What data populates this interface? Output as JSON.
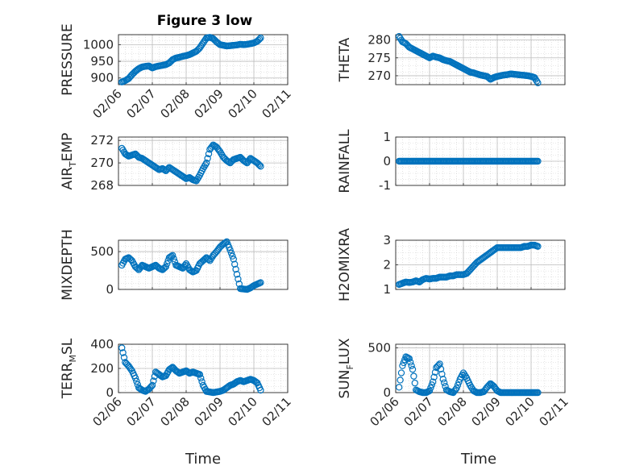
{
  "figure": {
    "title": "Figure 3 low",
    "marker_color": "#0072BD",
    "background": "#ffffff"
  },
  "chart_data": [
    {
      "type": "scatter",
      "ylabel": {
        "main": "PRESSURE",
        "sub": "",
        "after": ""
      },
      "ylim": [
        880,
        1030
      ],
      "yticks": [
        "900",
        "950",
        "1000"
      ],
      "ytick_values": [
        900,
        950,
        1000
      ],
      "xlim": [
        0,
        5
      ],
      "xticks": [
        "02/06",
        "02/07",
        "02/08",
        "02/09",
        "02/10",
        "02/11"
      ],
      "x": [
        0.1,
        0.2,
        0.3,
        0.4,
        0.5,
        0.6,
        0.7,
        0.8,
        0.9,
        1.0,
        1.1,
        1.2,
        1.3,
        1.4,
        1.5,
        1.6,
        1.7,
        1.8,
        1.9,
        2.0,
        2.1,
        2.2,
        2.3,
        2.4,
        2.5,
        2.6,
        2.7,
        2.8,
        2.9,
        3.0,
        3.1,
        3.2,
        3.3,
        3.4,
        3.5,
        3.6,
        3.7,
        3.8,
        3.9,
        4.0,
        4.1,
        4.2
      ],
      "y": [
        888,
        892,
        898,
        910,
        920,
        928,
        933,
        935,
        936,
        930,
        934,
        936,
        938,
        940,
        945,
        955,
        960,
        962,
        965,
        967,
        970,
        975,
        980,
        990,
        1005,
        1020,
        1022,
        1018,
        1008,
        1000,
        998,
        996,
        997,
        998,
        999,
        1001,
        1000,
        1001,
        1003,
        1005,
        1010,
        1020
      ]
    },
    {
      "type": "scatter",
      "ylabel": {
        "main": "THETA",
        "sub": "",
        "after": ""
      },
      "ylim": [
        267.5,
        281.5
      ],
      "yticks": [
        "270",
        "275",
        "280"
      ],
      "ytick_values": [
        270,
        275,
        280
      ],
      "xlim": [
        0,
        5
      ],
      "xticks": [],
      "x": [
        0.1,
        0.2,
        0.3,
        0.4,
        0.5,
        0.6,
        0.7,
        0.8,
        0.9,
        1.0,
        1.1,
        1.2,
        1.3,
        1.4,
        1.5,
        1.6,
        1.7,
        1.8,
        1.9,
        2.0,
        2.1,
        2.2,
        2.3,
        2.4,
        2.5,
        2.6,
        2.7,
        2.8,
        2.9,
        3.0,
        3.1,
        3.2,
        3.3,
        3.4,
        3.5,
        3.6,
        3.7,
        3.8,
        3.9,
        4.0,
        4.1,
        4.2
      ],
      "y": [
        281,
        279.5,
        279,
        278,
        277.5,
        277,
        276.5,
        276,
        275.5,
        275,
        275.5,
        275.2,
        275,
        274.5,
        274.2,
        274,
        273.5,
        273,
        272.5,
        272,
        271.5,
        271,
        270.8,
        270.5,
        270.2,
        270,
        269.8,
        269,
        269.5,
        269.8,
        270,
        270.2,
        270.3,
        270.5,
        270.4,
        270.3,
        270.2,
        270.1,
        270,
        269.8,
        269.5,
        268
      ]
    },
    {
      "type": "scatter",
      "ylabel": {
        "main": "AIR",
        "sub": "T",
        "after": "EMP"
      },
      "ylim": [
        268,
        272.3
      ],
      "yticks": [
        "268",
        "270",
        "272"
      ],
      "ytick_values": [
        268,
        270,
        272
      ],
      "xlim": [
        0,
        5
      ],
      "xticks": [],
      "x": [
        0.1,
        0.2,
        0.3,
        0.4,
        0.5,
        0.6,
        0.7,
        0.8,
        0.9,
        1.0,
        1.1,
        1.2,
        1.3,
        1.4,
        1.5,
        1.6,
        1.7,
        1.8,
        1.9,
        2.0,
        2.1,
        2.2,
        2.3,
        2.4,
        2.5,
        2.6,
        2.7,
        2.8,
        2.9,
        3.0,
        3.1,
        3.2,
        3.3,
        3.4,
        3.5,
        3.6,
        3.7,
        3.8,
        3.9,
        4.0,
        4.1,
        4.2
      ],
      "y": [
        271.3,
        270.8,
        270.6,
        270.7,
        270.8,
        270.5,
        270.4,
        270.2,
        270.0,
        269.8,
        269.6,
        269.4,
        269.5,
        269.3,
        269.6,
        269.4,
        269.2,
        269.0,
        268.8,
        268.6,
        268.7,
        268.5,
        268.4,
        268.9,
        269.5,
        270.0,
        271.2,
        271.6,
        271.4,
        271.0,
        270.5,
        270.2,
        270.0,
        270.3,
        270.4,
        270.5,
        270.2,
        270.0,
        270.4,
        270.2,
        270.0,
        269.7
      ]
    },
    {
      "type": "scatter",
      "ylabel": {
        "main": "RAINFALL",
        "sub": "",
        "after": ""
      },
      "ylim": [
        -1,
        1
      ],
      "yticks": [
        "-1",
        "0",
        "1"
      ],
      "ytick_values": [
        -1,
        0,
        1
      ],
      "xlim": [
        0,
        5
      ],
      "xticks": [],
      "x": [
        0.1,
        0.2,
        0.3,
        0.4,
        0.5,
        0.6,
        0.7,
        0.8,
        0.9,
        1.0,
        1.1,
        1.2,
        1.3,
        1.4,
        1.5,
        1.6,
        1.7,
        1.8,
        1.9,
        2.0,
        2.1,
        2.2,
        2.3,
        2.4,
        2.5,
        2.6,
        2.7,
        2.8,
        2.9,
        3.0,
        3.1,
        3.2,
        3.3,
        3.4,
        3.5,
        3.6,
        3.7,
        3.8,
        3.9,
        4.0,
        4.1,
        4.2
      ],
      "y": [
        0,
        0,
        0,
        0,
        0,
        0,
        0,
        0,
        0,
        0,
        0,
        0,
        0,
        0,
        0,
        0,
        0,
        0,
        0,
        0,
        0,
        0,
        0,
        0,
        0,
        0,
        0,
        0,
        0,
        0,
        0,
        0,
        0,
        0,
        0,
        0,
        0,
        0,
        0,
        0,
        0,
        0
      ]
    },
    {
      "type": "scatter",
      "ylabel": {
        "main": "MIXDEPTH",
        "sub": "",
        "after": ""
      },
      "ylim": [
        0,
        650
      ],
      "yticks": [
        "0",
        "500"
      ],
      "ytick_values": [
        0,
        500
      ],
      "xlim": [
        0,
        5
      ],
      "xticks": [],
      "x": [
        0.1,
        0.2,
        0.3,
        0.4,
        0.5,
        0.6,
        0.7,
        0.8,
        0.9,
        1.0,
        1.1,
        1.2,
        1.3,
        1.4,
        1.5,
        1.6,
        1.7,
        1.8,
        1.9,
        2.0,
        2.1,
        2.2,
        2.3,
        2.4,
        2.5,
        2.6,
        2.7,
        2.8,
        2.9,
        3.0,
        3.1,
        3.2,
        3.3,
        3.4,
        3.5,
        3.6,
        3.7,
        3.8,
        3.9,
        4.0,
        4.1,
        4.2
      ],
      "y": [
        320,
        400,
        420,
        380,
        300,
        260,
        320,
        300,
        280,
        300,
        320,
        280,
        260,
        300,
        420,
        450,
        320,
        300,
        280,
        340,
        260,
        230,
        250,
        340,
        380,
        420,
        380,
        450,
        500,
        560,
        600,
        630,
        520,
        400,
        200,
        10,
        5,
        0,
        20,
        50,
        70,
        90
      ]
    },
    {
      "type": "scatter",
      "ylabel": {
        "main": "H2OMIXRA",
        "sub": "",
        "after": ""
      },
      "ylim": [
        1,
        3
      ],
      "yticks": [
        "1",
        "2",
        "3"
      ],
      "ytick_values": [
        1,
        2,
        3
      ],
      "xlim": [
        0,
        5
      ],
      "xticks": [],
      "x": [
        0.1,
        0.2,
        0.3,
        0.4,
        0.5,
        0.6,
        0.7,
        0.8,
        0.9,
        1.0,
        1.1,
        1.2,
        1.3,
        1.4,
        1.5,
        1.6,
        1.7,
        1.8,
        1.9,
        2.0,
        2.1,
        2.2,
        2.3,
        2.4,
        2.5,
        2.6,
        2.7,
        2.8,
        2.9,
        3.0,
        3.1,
        3.2,
        3.3,
        3.4,
        3.5,
        3.6,
        3.7,
        3.8,
        3.9,
        4.0,
        4.1,
        4.2
      ],
      "y": [
        1.2,
        1.25,
        1.3,
        1.28,
        1.3,
        1.35,
        1.3,
        1.4,
        1.45,
        1.42,
        1.45,
        1.45,
        1.5,
        1.5,
        1.5,
        1.55,
        1.55,
        1.6,
        1.6,
        1.6,
        1.65,
        1.8,
        1.95,
        2.1,
        2.2,
        2.3,
        2.4,
        2.5,
        2.6,
        2.7,
        2.7,
        2.7,
        2.7,
        2.7,
        2.7,
        2.7,
        2.7,
        2.75,
        2.75,
        2.8,
        2.8,
        2.75
      ]
    },
    {
      "type": "scatter",
      "ylabel": {
        "main": "TERR",
        "sub": "M",
        "after": "SL"
      },
      "ylim": [
        0,
        400
      ],
      "yticks": [
        "0",
        "200",
        "400"
      ],
      "ytick_values": [
        0,
        200,
        400
      ],
      "xlim": [
        0,
        5
      ],
      "xticks": [
        "02/06",
        "02/07",
        "02/08",
        "02/09",
        "02/10",
        "02/11"
      ],
      "x": [
        0.1,
        0.2,
        0.3,
        0.4,
        0.5,
        0.6,
        0.7,
        0.8,
        0.9,
        1.0,
        1.1,
        1.2,
        1.3,
        1.4,
        1.5,
        1.6,
        1.7,
        1.8,
        1.9,
        2.0,
        2.1,
        2.2,
        2.3,
        2.4,
        2.5,
        2.6,
        2.7,
        2.8,
        2.9,
        3.0,
        3.1,
        3.2,
        3.3,
        3.4,
        3.5,
        3.6,
        3.7,
        3.8,
        3.9,
        4.0,
        4.1,
        4.2
      ],
      "y": [
        370,
        250,
        220,
        180,
        120,
        40,
        20,
        10,
        30,
        60,
        170,
        150,
        130,
        140,
        190,
        210,
        180,
        160,
        170,
        180,
        160,
        170,
        160,
        150,
        60,
        10,
        5,
        0,
        5,
        10,
        20,
        40,
        60,
        70,
        90,
        100,
        90,
        100,
        110,
        100,
        80,
        20
      ]
    },
    {
      "type": "scatter",
      "ylabel": {
        "main": "SUN",
        "sub": "F",
        "after": "LUX"
      },
      "ylim": [
        0,
        540
      ],
      "yticks": [
        "0",
        "500"
      ],
      "ytick_values": [
        0,
        500
      ],
      "xlim": [
        0,
        5
      ],
      "xticks": [
        "02/06",
        "02/07",
        "02/08",
        "02/09",
        "02/10",
        "02/11"
      ],
      "x": [
        0.1,
        0.2,
        0.3,
        0.4,
        0.5,
        0.6,
        0.7,
        0.8,
        0.9,
        1.0,
        1.1,
        1.2,
        1.3,
        1.4,
        1.5,
        1.6,
        1.7,
        1.8,
        1.9,
        2.0,
        2.1,
        2.2,
        2.3,
        2.4,
        2.5,
        2.6,
        2.7,
        2.8,
        2.9,
        3.0,
        3.1,
        3.2,
        3.3,
        3.4,
        3.5,
        3.6,
        3.7,
        3.8,
        3.9,
        4.0,
        4.1,
        4.2
      ],
      "y": [
        60,
        300,
        400,
        380,
        260,
        30,
        10,
        0,
        0,
        20,
        120,
        280,
        320,
        150,
        30,
        10,
        0,
        50,
        150,
        220,
        160,
        80,
        20,
        0,
        0,
        10,
        60,
        100,
        70,
        20,
        0,
        0,
        0,
        0,
        0,
        0,
        0,
        0,
        0,
        0,
        0,
        0
      ]
    }
  ],
  "xaxis_label": "Time"
}
